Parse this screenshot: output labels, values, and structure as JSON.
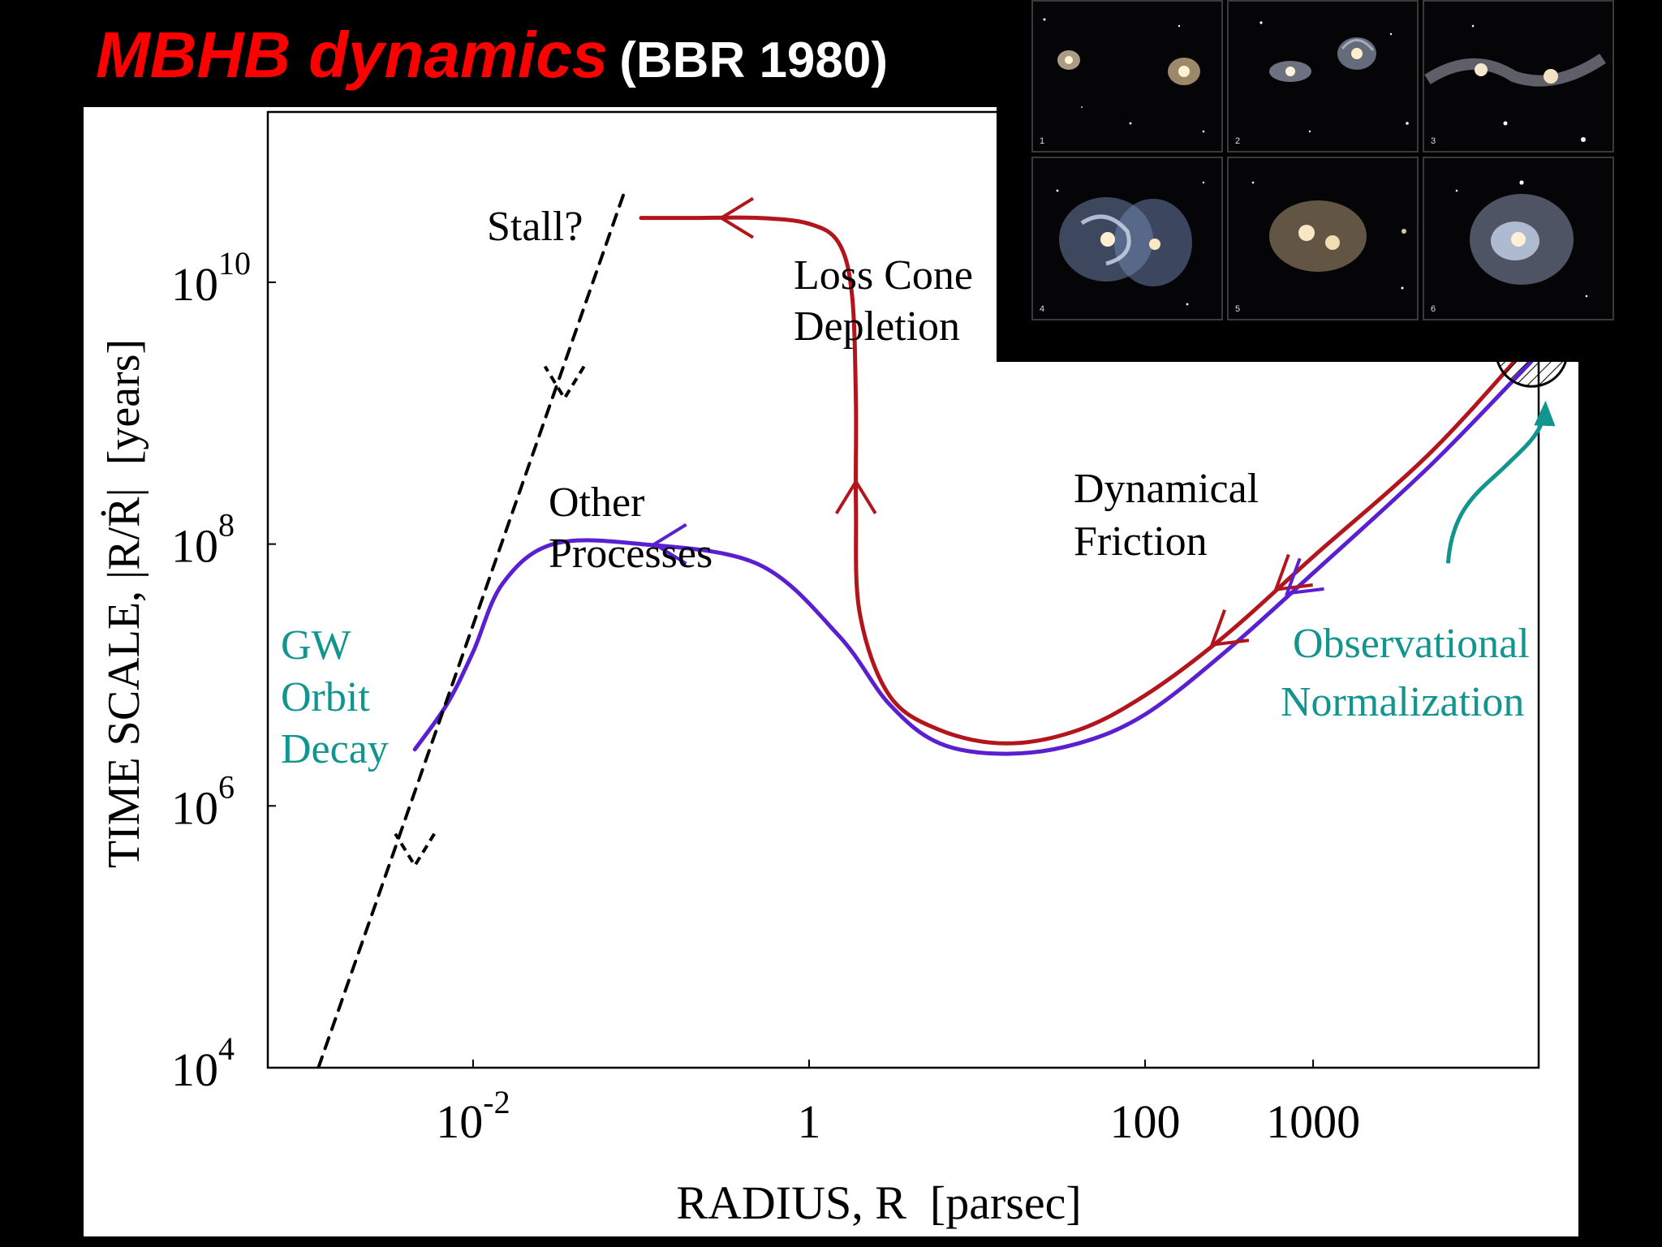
{
  "slide": {
    "title_main": "MBHB dynamics",
    "title_citation": "(BBR 1980)"
  },
  "colors": {
    "title_red": "#ff0000",
    "loss_cone_curve": "#b2161c",
    "other_processes_curve": "#5a1fd1",
    "gw_dashed": "#000000",
    "teal_annotation": "#12948f"
  },
  "galaxy_sequence": {
    "panels": [
      {
        "number": "1",
        "icon": "two-separate-galaxies-icon"
      },
      {
        "number": "2",
        "icon": "approaching-galaxies-icon"
      },
      {
        "number": "3",
        "icon": "tidal-tails-galaxies-icon"
      },
      {
        "number": "4",
        "icon": "overlapping-spirals-icon"
      },
      {
        "number": "5",
        "icon": "merging-cores-icon"
      },
      {
        "number": "6",
        "icon": "merged-remnant-icon"
      }
    ]
  },
  "chart_data": {
    "type": "line",
    "title": "",
    "xlabel": "RADIUS, R  [parsec]",
    "ylabel": "TIME SCALE, |R/Ṙ|  [years]",
    "x_scale": "log",
    "y_scale": "log",
    "xlim": [
      0.0006,
      22000
    ],
    "ylim": [
      10000,
      200000000000
    ],
    "x_ticks": [
      {
        "value": 0.01,
        "base": "10",
        "exp": "-2"
      },
      {
        "value": 1,
        "base": "1",
        "exp": ""
      },
      {
        "value": 100,
        "base": "100",
        "exp": ""
      },
      {
        "value": 1000,
        "base": "1000",
        "exp": ""
      }
    ],
    "y_ticks": [
      {
        "value": 10000,
        "base": "10",
        "exp": "4"
      },
      {
        "value": 1000000,
        "base": "10",
        "exp": "6"
      },
      {
        "value": 100000000,
        "base": "10",
        "exp": "8"
      },
      {
        "value": 10000000000,
        "base": "10",
        "exp": "10"
      }
    ],
    "grid": false,
    "legend": "none",
    "series": [
      {
        "key": "loss_cone",
        "color": "#b2161c",
        "points": [
          [
            20000,
            3500000000
          ],
          [
            5000,
            500000000
          ],
          [
            1000,
            80000000
          ],
          [
            300,
            20000000
          ],
          [
            100,
            7000000
          ],
          [
            40,
            3800000
          ],
          [
            15,
            3000000
          ],
          [
            6,
            3800000
          ],
          [
            3,
            7000000
          ],
          [
            2,
            30000000
          ],
          [
            1.9,
            200000000
          ],
          [
            1.9,
            1200000000
          ],
          [
            1.8,
            8000000000
          ],
          [
            1.5,
            20000000000
          ],
          [
            1,
            28000000000
          ],
          [
            0.5,
            31000000000
          ],
          [
            0.2,
            31000000000
          ],
          [
            0.1,
            31000000000
          ]
        ],
        "arrows": [
          {
            "at": [
              600,
              45000000
            ],
            "pointing": "left-down"
          },
          {
            "at": [
              250,
              17000000
            ],
            "pointing": "left-down"
          },
          {
            "at": [
              1.9,
              300000000
            ],
            "pointing": "up"
          },
          {
            "at": [
              0.3,
              31000000000
            ],
            "pointing": "left"
          }
        ]
      },
      {
        "key": "other_processes",
        "color": "#5a1fd1",
        "points": [
          [
            20000,
            2500000000
          ],
          [
            5000,
            400000000
          ],
          [
            1000,
            60000000
          ],
          [
            300,
            15000000
          ],
          [
            100,
            5000000
          ],
          [
            40,
            3000000
          ],
          [
            15,
            2500000
          ],
          [
            6,
            3000000
          ],
          [
            3,
            6000000
          ],
          [
            1.5,
            20000000
          ],
          [
            0.5,
            70000000
          ],
          [
            0.1,
            100000000
          ],
          [
            0.03,
            100000000
          ],
          [
            0.015,
            50000000
          ],
          [
            0.01,
            15000000
          ],
          [
            0.007,
            6000000
          ],
          [
            0.0045,
            2700000
          ]
        ],
        "arrows": [
          {
            "at": [
              700,
              42000000
            ],
            "pointing": "left-down"
          },
          {
            "at": [
              0.12,
              100000000
            ],
            "pointing": "left"
          }
        ]
      },
      {
        "key": "gw_decay",
        "style": "dashed",
        "color": "#000000",
        "points": [
          [
            0.0012,
            10000
          ],
          [
            0.08,
            50000000000
          ]
        ],
        "arrows": [
          {
            "at": [
              0.0045,
              350000
            ],
            "pointing": "down"
          },
          {
            "at": [
              0.035,
              1300000000
            ],
            "pointing": "down"
          }
        ]
      }
    ],
    "annotations": {
      "stall": "Stall?",
      "loss_cone_line1": "Loss Cone",
      "loss_cone_line2": "Depletion",
      "other_line1": "Other",
      "other_line2": "Processes",
      "dynamical_line1": "Dynamical",
      "dynamical_line2": "Friction",
      "gw_line1": "GW",
      "gw_line2": "Orbit",
      "gw_line3": "Decay",
      "obs_line1": "Observational",
      "obs_line2": "Normalization"
    },
    "normalization_circle_at": [
      20000,
      3000000000
    ]
  }
}
